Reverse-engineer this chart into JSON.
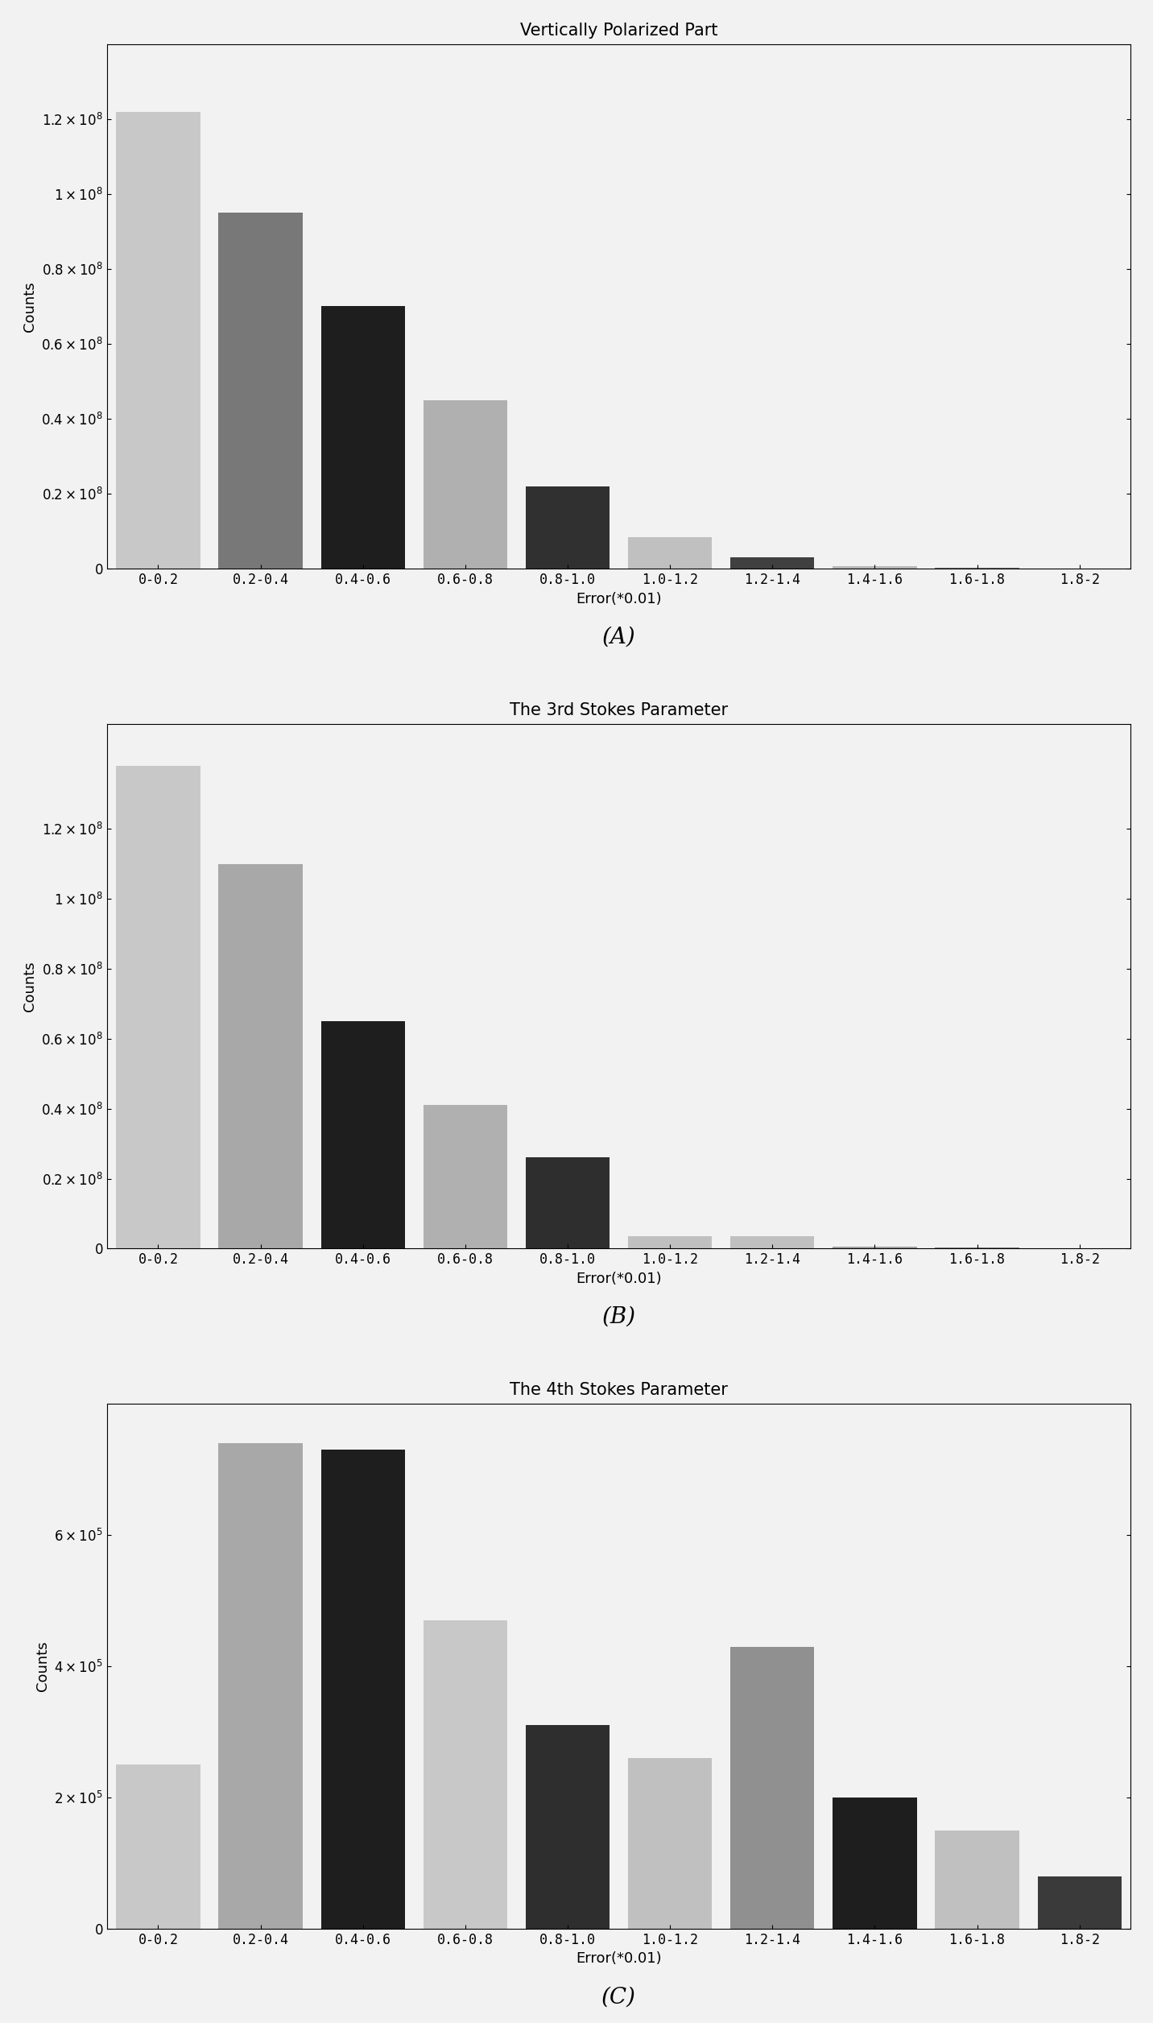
{
  "chart_A": {
    "title": "Vertically Polarized Part",
    "xlabel": "Error(*0.01)",
    "ylabel": "Counts",
    "caption": "(A)",
    "categories": [
      "0-0.2",
      "0.2-0.4",
      "0.4-0.6",
      "0.6-0.8",
      "0.8-1.0",
      "1.0-1.2",
      "1.2-1.4",
      "1.4-1.6",
      "1.6-1.8",
      "1.8-2"
    ],
    "values": [
      122000000.0,
      95000000.0,
      70000000.0,
      45000000.0,
      22000000.0,
      8500000.0,
      3000000.0,
      600000.0,
      200000.0,
      50000.0
    ],
    "colors": [
      "#c8c8c8",
      "#787878",
      "#1e1e1e",
      "#b0b0b0",
      "#303030",
      "#c0c0c0",
      "#404040",
      "#b8b8b8",
      "#707070",
      "#282828"
    ],
    "ylim": [
      0,
      140000000.0
    ],
    "yticks": [
      0,
      20000000.0,
      40000000.0,
      60000000.0,
      80000000.0,
      100000000.0,
      120000000.0
    ]
  },
  "chart_B": {
    "title": "The 3rd Stokes Parameter",
    "xlabel": "Error(*0.01)",
    "ylabel": "Counts",
    "caption": "(B)",
    "categories": [
      "0-0.2",
      "0.2-0.4",
      "0.4-0.6",
      "0.6-0.8",
      "0.8-1.0",
      "1.0-1.2",
      "1.2-1.4",
      "1.4-1.6",
      "1.6-1.8",
      "1.8-2"
    ],
    "values": [
      138000000.0,
      110000000.0,
      65000000.0,
      41000000.0,
      26000000.0,
      3500000.0,
      3500000.0,
      500000.0,
      200000.0,
      100000.0
    ],
    "colors": [
      "#c8c8c8",
      "#a8a8a8",
      "#1e1e1e",
      "#b0b0b0",
      "#2e2e2e",
      "#c0c0c0",
      "#c0c0c0",
      "#a0a0a0",
      "#808080",
      "#404040"
    ],
    "ylim": [
      0,
      150000000.0
    ],
    "yticks": [
      0,
      20000000.0,
      40000000.0,
      60000000.0,
      80000000.0,
      100000000.0,
      120000000.0
    ]
  },
  "chart_C": {
    "title": "The 4th Stokes Parameter",
    "xlabel": "Error(*0.01)",
    "ylabel": "Counts",
    "caption": "(C)",
    "categories": [
      "0-0.2",
      "0.2-0.4",
      "0.4-0.6",
      "0.6-0.8",
      "0.8-1.0",
      "1.0-1.2",
      "1.2-1.4",
      "1.4-1.6",
      "1.6-1.8",
      "1.8-2"
    ],
    "values": [
      250000.0,
      740000.0,
      730000.0,
      470000.0,
      310000.0,
      260000.0,
      430000.0,
      200000.0,
      150000.0,
      80000.0
    ],
    "colors": [
      "#c8c8c8",
      "#a8a8a8",
      "#1e1e1e",
      "#c8c8c8",
      "#2e2e2e",
      "#c0c0c0",
      "#909090",
      "#1e1e1e",
      "#c0c0c0",
      "#3a3a3a"
    ],
    "ylim": [
      0,
      800000.0
    ],
    "yticks": [
      0,
      200000.0,
      400000.0,
      600000.0
    ]
  },
  "background_color": "#f2f2f2",
  "fig_width": 14.32,
  "fig_height": 25.12,
  "bar_width": 0.82
}
